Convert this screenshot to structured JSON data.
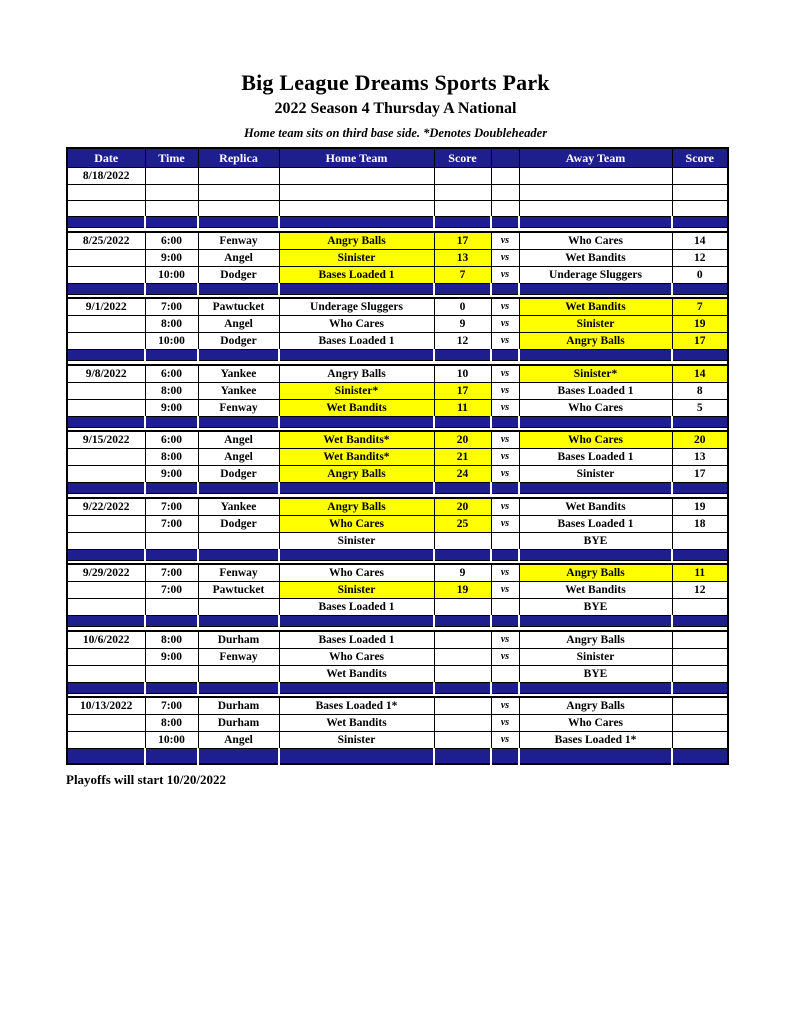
{
  "page": {
    "title": "Big League Dreams Sports Park",
    "subtitle": "2022 Season 4 Thursday A National",
    "note": "Home team sits on third base side.  *Denotes Doubleheader",
    "footer": "Playoffs will start 10/20/2022"
  },
  "colors": {
    "navy": "#1E1E8F",
    "yellow": "#FFFF00",
    "header_text": "#FFFFFF"
  },
  "table": {
    "headers": [
      "Date",
      "Time",
      "Replica",
      "Home Team",
      "Score",
      "",
      "Away Team",
      "Score"
    ],
    "vs_label": "vs",
    "blocks": [
      {
        "rows": [
          {
            "date": "8/18/2022",
            "time": "",
            "replica": "",
            "home": "",
            "home_score": "",
            "vs": false,
            "away": "",
            "away_score": "",
            "home_win": false,
            "away_win": false
          },
          {
            "date": "",
            "time": "",
            "replica": "",
            "home": "",
            "home_score": "",
            "vs": false,
            "away": "",
            "away_score": "",
            "home_win": false,
            "away_win": false
          },
          {
            "date": "",
            "time": "",
            "replica": "",
            "home": "",
            "home_score": "",
            "vs": false,
            "away": "",
            "away_score": "",
            "home_win": false,
            "away_win": false
          }
        ]
      },
      {
        "rows": [
          {
            "date": "8/25/2022",
            "time": "6:00",
            "replica": "Fenway",
            "home": "Angry Balls",
            "home_score": "17",
            "vs": true,
            "away": "Who Cares",
            "away_score": "14",
            "home_win": true,
            "away_win": false
          },
          {
            "date": "",
            "time": "9:00",
            "replica": "Angel",
            "home": "Sinister",
            "home_score": "13",
            "vs": true,
            "away": "Wet Bandits",
            "away_score": "12",
            "home_win": true,
            "away_win": false
          },
          {
            "date": "",
            "time": "10:00",
            "replica": "Dodger",
            "home": "Bases Loaded 1",
            "home_score": "7",
            "vs": true,
            "away": "Underage Sluggers",
            "away_score": "0",
            "home_win": true,
            "away_win": false
          }
        ]
      },
      {
        "rows": [
          {
            "date": "9/1/2022",
            "time": "7:00",
            "replica": "Pawtucket",
            "home": "Underage Sluggers",
            "home_score": "0",
            "vs": true,
            "away": "Wet Bandits",
            "away_score": "7",
            "home_win": false,
            "away_win": true
          },
          {
            "date": "",
            "time": "8:00",
            "replica": "Angel",
            "home": "Who Cares",
            "home_score": "9",
            "vs": true,
            "away": "Sinister",
            "away_score": "19",
            "home_win": false,
            "away_win": true
          },
          {
            "date": "",
            "time": "10:00",
            "replica": "Dodger",
            "home": "Bases Loaded 1",
            "home_score": "12",
            "vs": true,
            "away": "Angry Balls",
            "away_score": "17",
            "home_win": false,
            "away_win": true
          }
        ]
      },
      {
        "rows": [
          {
            "date": "9/8/2022",
            "time": "6:00",
            "replica": "Yankee",
            "home": "Angry Balls",
            "home_score": "10",
            "vs": true,
            "away": "Sinister*",
            "away_score": "14",
            "home_win": false,
            "away_win": true
          },
          {
            "date": "",
            "time": "8:00",
            "replica": "Yankee",
            "home": "Sinister*",
            "home_score": "17",
            "vs": true,
            "away": "Bases Loaded 1",
            "away_score": "8",
            "home_win": true,
            "away_win": false
          },
          {
            "date": "",
            "time": "9:00",
            "replica": "Fenway",
            "home": "Wet Bandits",
            "home_score": "11",
            "vs": true,
            "away": "Who Cares",
            "away_score": "5",
            "home_win": true,
            "away_win": false
          }
        ]
      },
      {
        "rows": [
          {
            "date": "9/15/2022",
            "time": "6:00",
            "replica": "Angel",
            "home": "Wet Bandits*",
            "home_score": "20",
            "vs": true,
            "away": "Who Cares",
            "away_score": "20",
            "home_win": true,
            "away_win": true
          },
          {
            "date": "",
            "time": "8:00",
            "replica": "Angel",
            "home": "Wet Bandits*",
            "home_score": "21",
            "vs": true,
            "away": "Bases Loaded 1",
            "away_score": "13",
            "home_win": true,
            "away_win": false
          },
          {
            "date": "",
            "time": "9:00",
            "replica": "Dodger",
            "home": "Angry Balls",
            "home_score": "24",
            "vs": true,
            "away": "Sinister",
            "away_score": "17",
            "home_win": true,
            "away_win": false
          }
        ]
      },
      {
        "rows": [
          {
            "date": "9/22/2022",
            "time": "7:00",
            "replica": "Yankee",
            "home": "Angry Balls",
            "home_score": "20",
            "vs": true,
            "away": "Wet Bandits",
            "away_score": "19",
            "home_win": true,
            "away_win": false
          },
          {
            "date": "",
            "time": "7:00",
            "replica": "Dodger",
            "home": "Who Cares",
            "home_score": "25",
            "vs": true,
            "away": "Bases Loaded 1",
            "away_score": "18",
            "home_win": true,
            "away_win": false
          },
          {
            "date": "",
            "time": "",
            "replica": "",
            "home": "Sinister",
            "home_score": "",
            "vs": false,
            "away": "BYE",
            "away_score": "",
            "home_win": false,
            "away_win": false
          }
        ]
      },
      {
        "rows": [
          {
            "date": "9/29/2022",
            "time": "7:00",
            "replica": "Fenway",
            "home": "Who Cares",
            "home_score": "9",
            "vs": true,
            "away": "Angry Balls",
            "away_score": "11",
            "home_win": false,
            "away_win": true
          },
          {
            "date": "",
            "time": "7:00",
            "replica": "Pawtucket",
            "home": "Sinister",
            "home_score": "19",
            "vs": true,
            "away": "Wet Bandits",
            "away_score": "12",
            "home_win": true,
            "away_win": false
          },
          {
            "date": "",
            "time": "",
            "replica": "",
            "home": "Bases Loaded 1",
            "home_score": "",
            "vs": false,
            "away": "BYE",
            "away_score": "",
            "home_win": false,
            "away_win": false
          }
        ]
      },
      {
        "rows": [
          {
            "date": "10/6/2022",
            "time": "8:00",
            "replica": "Durham",
            "home": "Bases Loaded 1",
            "home_score": "",
            "vs": true,
            "away": "Angry Balls",
            "away_score": "",
            "home_win": false,
            "away_win": false
          },
          {
            "date": "",
            "time": "9:00",
            "replica": "Fenway",
            "home": "Who Cares",
            "home_score": "",
            "vs": true,
            "away": "Sinister",
            "away_score": "",
            "home_win": false,
            "away_win": false
          },
          {
            "date": "",
            "time": "",
            "replica": "",
            "home": "Wet Bandits",
            "home_score": "",
            "vs": false,
            "away": "BYE",
            "away_score": "",
            "home_win": false,
            "away_win": false
          }
        ]
      },
      {
        "rows": [
          {
            "date": "10/13/2022",
            "time": "7:00",
            "replica": "Durham",
            "home": "Bases Loaded 1*",
            "home_score": "",
            "vs": true,
            "away": "Angry Balls",
            "away_score": "",
            "home_win": false,
            "away_win": false
          },
          {
            "date": "",
            "time": "8:00",
            "replica": "Durham",
            "home": "Wet Bandits",
            "home_score": "",
            "vs": true,
            "away": "Who Cares",
            "away_score": "",
            "home_win": false,
            "away_win": false
          },
          {
            "date": "",
            "time": "10:00",
            "replica": "Angel",
            "home": "Sinister",
            "home_score": "",
            "vs": true,
            "away": "Bases Loaded 1*",
            "away_score": "",
            "home_win": false,
            "away_win": false
          }
        ]
      }
    ]
  }
}
